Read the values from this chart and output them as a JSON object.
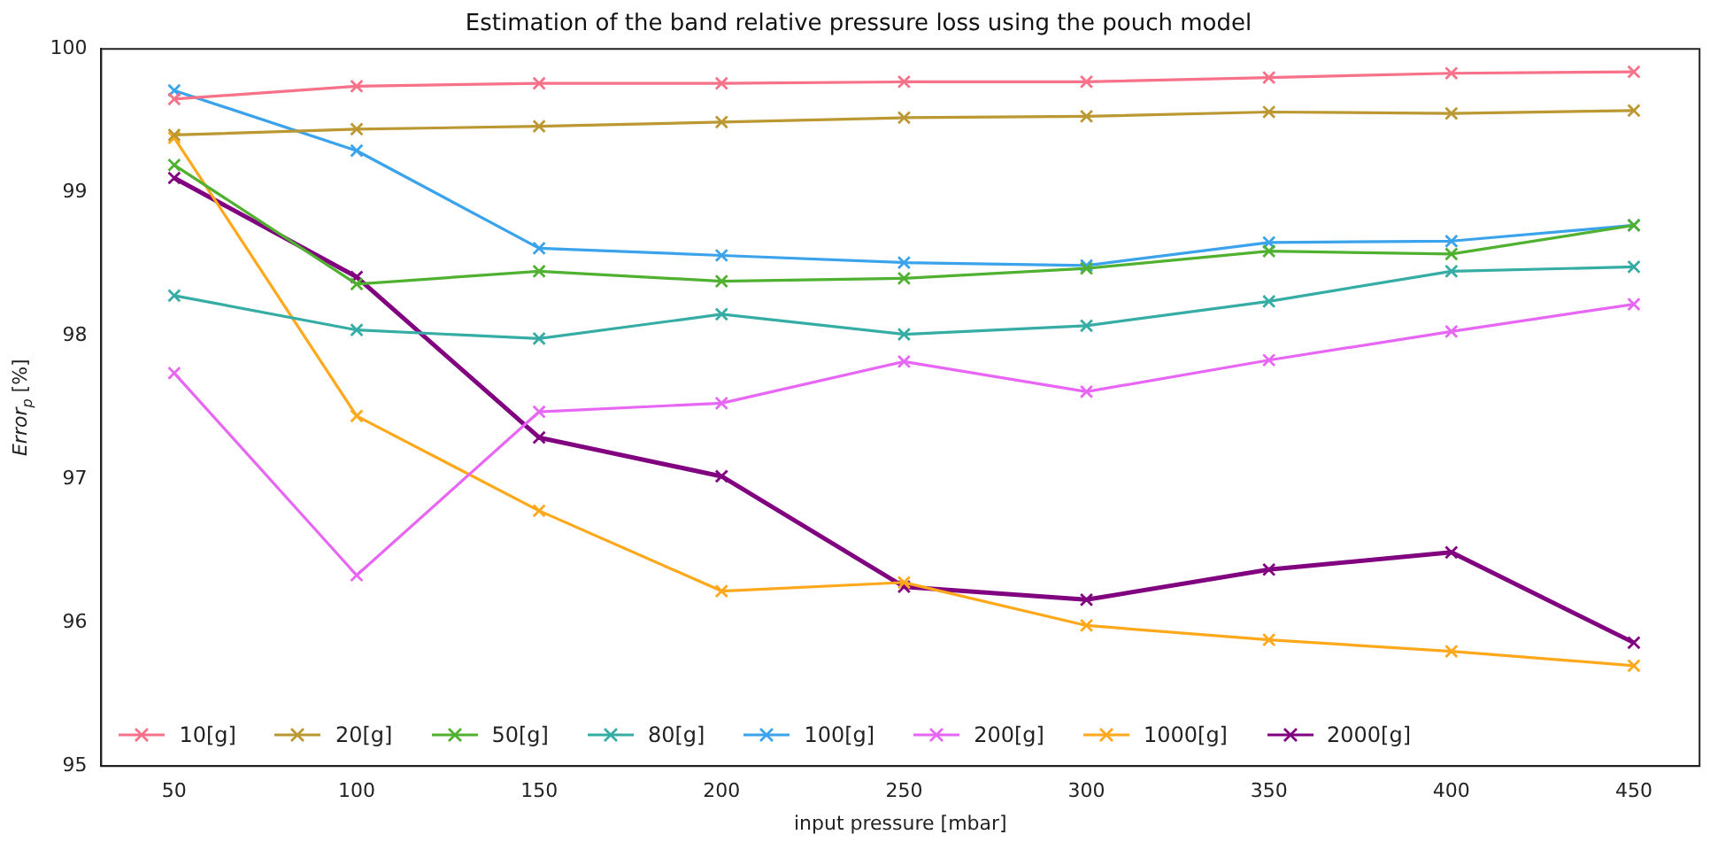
{
  "chart_data": {
    "type": "line",
    "title": "Estimation of the band relative pressure loss using the pouch model",
    "xlabel": "input pressure [mbar]",
    "ylabel": "Error$_{p}$ [%]",
    "x": [
      50,
      100,
      150,
      200,
      250,
      300,
      350,
      400,
      450
    ],
    "xlim": [
      30,
      468
    ],
    "xticks": [
      50,
      100,
      150,
      200,
      250,
      300,
      350,
      400,
      450
    ],
    "ylim": [
      95,
      100
    ],
    "yticks": [
      95,
      96,
      97,
      98,
      99,
      100
    ],
    "grid": false,
    "legend": "bottom left",
    "marker": "cross",
    "line_style": "solid",
    "series": [
      {
        "name": "10[g]",
        "color": "#f77189",
        "values": [
          99.65,
          99.74,
          99.76,
          99.76,
          99.77,
          99.77,
          99.8,
          99.83,
          99.84
        ]
      },
      {
        "name": "20[g]",
        "color": "#bb9832",
        "values": [
          99.4,
          99.44,
          99.46,
          99.49,
          99.52,
          99.53,
          99.56,
          99.55,
          99.57
        ]
      },
      {
        "name": "50[g]",
        "color": "#50b131",
        "values": [
          99.19,
          98.36,
          98.45,
          98.38,
          98.4,
          98.47,
          98.59,
          98.57,
          98.77
        ]
      },
      {
        "name": "80[g]",
        "color": "#36ada4",
        "values": [
          98.28,
          98.04,
          97.98,
          98.15,
          98.01,
          98.07,
          98.24,
          98.45,
          98.48
        ]
      },
      {
        "name": "100[g]",
        "color": "#3ba3ec",
        "values": [
          99.71,
          99.29,
          98.61,
          98.56,
          98.51,
          98.49,
          98.65,
          98.66,
          98.77
        ]
      },
      {
        "name": "200[g]",
        "color": "#e866f4",
        "values": [
          97.74,
          96.33,
          97.47,
          97.53,
          97.82,
          97.61,
          97.83,
          98.03,
          98.22
        ]
      },
      {
        "name": "1000[g]",
        "color": "#ffa81c",
        "values": [
          99.38,
          97.44,
          96.78,
          96.22,
          96.28,
          95.98,
          95.88,
          95.8,
          95.7
        ]
      },
      {
        "name": "2000[g]",
        "color": "#800080",
        "values": [
          99.1,
          98.41,
          97.29,
          97.02,
          96.25,
          96.16,
          96.37,
          96.49,
          95.86
        ]
      }
    ]
  }
}
